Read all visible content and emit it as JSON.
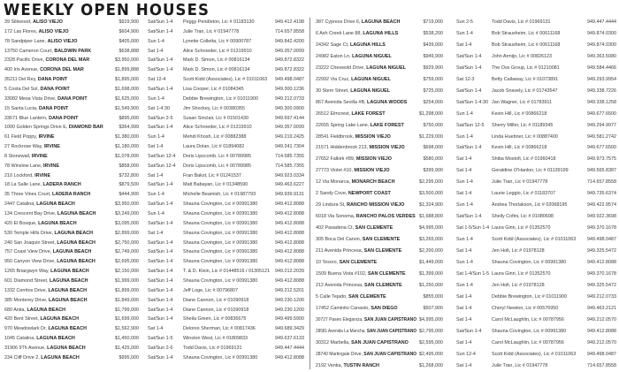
{
  "title": "WEEKLY OPEN HOUSES",
  "columns": [
    [
      [
        "39 Silkwood, ",
        "ALISO VIEJO",
        "$919,900",
        "Sat/Sun 1-4",
        "Peggy Pendleton, Lic # 01183130",
        "949.412.4198"
      ],
      [
        "172 Las Flores, ",
        "ALISO VIEJO",
        "$604,900",
        "Sat/Sun 1-4",
        "Julie Tran, Lic # 01947778",
        "714.657.8558"
      ],
      [
        "78 Sandpiper Lane, ",
        "ALISO VIEJO",
        "$405,000",
        "Sun 1-4",
        "Lynette Colletta, Lic # 00900787",
        "949.842.4200"
      ],
      [
        "13750 Cameron Court, ",
        "BALDWIN PARK",
        "$638,888",
        "Sat 1-4",
        "Alice Schroeder, Lic # 01319910",
        "949.357.0099"
      ],
      [
        "2328 Pacific Drive, ",
        "CORONA DEL MAR",
        "$3,950,000",
        "Sat/Sun 1-4",
        "Mark D. Simon, Lic # 00816134",
        "949.872.8322"
      ],
      [
        "400 Iris Avenue, ",
        "CORONA DEL MAR",
        "$1,899,888",
        "Sat/Sun 1-4",
        "Mark D. Simon, Lic # 00816134",
        "949.872.8322"
      ],
      [
        "35211 Del Rey, ",
        "DANA POINT",
        "$1,895,000",
        "Sat 12-4",
        "Scott Kidd (Associates), Lic # 01011063",
        "949.498.0487"
      ],
      [
        "5 Costa Del Sol, ",
        "DANA POINT",
        "$1,698,000",
        "Sat/Sun 1-4",
        "Lisa Cooper, Lic # 01084345",
        "949.300.1236"
      ],
      [
        "33082 Mesa Vista Drive, ",
        "DANA POINT",
        "$1,625,000",
        "Sun 1-4",
        "Debbie Brewington, Lic # 01011900",
        "949.212.0733"
      ],
      [
        "15 Santa Lucia, ",
        "DANA POINT",
        "$1,549,900",
        "Sat 1-4:30",
        "Jim Shockey, Lic # 00380355",
        "949.300.0900"
      ],
      [
        "33671 Blue Lantern, ",
        "DANA POINT",
        "$895,000",
        "Sat/Sun 2-5",
        "Susan Sinclair, Lic # 01501430",
        "949.697.4144"
      ],
      [
        "1000 Golden Springs Drive E, ",
        "DIAMOND BAR",
        "$364,999",
        "Sat/Sun 1-4",
        "Alice Schroeder, Lic # 01319910",
        "949.357.0099"
      ],
      [
        "61 Field Poppy, ",
        "IRVINE",
        "$1,380,000",
        "Sun 1-4",
        "Mehdi Khosh, Lic # 00882388",
        "949.219.2425"
      ],
      [
        "27 Rockrose Way, ",
        "IRVINE",
        "$1,180,000",
        "Sat 1-4",
        "Laura Dolan, Lic # 01894082",
        "949.241.7304"
      ],
      [
        "8 Stonewall, ",
        "IRVINE",
        "$1,078,000",
        "Sat/Sun 12-4",
        "Doris Lipscomb, Lic # 00789985",
        "714.585.7355"
      ],
      [
        "78 Winslow Lane, ",
        "IRVINE",
        "$858,000",
        "Sat/Sun 12-4",
        "Doris Lipscomb, Lic # 00789985",
        "714.585.7355"
      ],
      [
        "210 Lockford, ",
        "IRVINE",
        "$732,800",
        "Sat 1-4",
        "Fran Bakst, Lic # 01241537",
        "949.923.0334"
      ],
      [
        "18 La Salle Lane, ",
        "LADERA RANCH",
        "$879,500",
        "Sat/Sun 1-4",
        "Matt Babayan, Lic # 01348590",
        "949.463.6227"
      ],
      [
        "35 Three Vines Court, ",
        "LADERA RANCH",
        "$444,900",
        "Sun 1-4",
        "Michelle Beamish, Lic # 01987793",
        "949.939.9131"
      ],
      [
        "2447 Catalina, ",
        "LAGUNA BEACH",
        "$3,950,000",
        "Sat/Sun 1-4",
        "Shauna Covington, Lic # 00991380",
        "949.412.8088"
      ],
      [
        "134 Crescent Bay Drive, ",
        "LAGUNA BEACH",
        "$3,249,000",
        "Sun 1-4",
        "Shauna Covington, Lic # 00991380",
        "949.412.8088"
      ],
      [
        "420 El Bosque, ",
        "LAGUNA BEACH",
        "$3,095,000",
        "Sat/Sun 1-4",
        "Shauna Covington, Lic # 00991380",
        "949.412.8088"
      ],
      [
        "530 Temple Hills Drive, ",
        "LAGUNA BEACH",
        "$2,899,000",
        "Sat 1-4",
        "Shauna Covington, Lic # 00991380",
        "949.412.8088"
      ],
      [
        "240 San Joaquin Street, ",
        "LAGUNA BEACH",
        "$2,750,000",
        "Sat/Sun 1-4",
        "Shauna Covington, Lic # 00991380",
        "949.412.8088"
      ],
      [
        "757 Coast View Drive, ",
        "LAGUNA BEACH",
        "$2,749,000",
        "Sat/Sun 1-4",
        "Shauna Covington, Lic # 00991380",
        "949.412.8088"
      ],
      [
        "950 Canyon View Drive, ",
        "LAGUNA BEACH",
        "$2,695,000",
        "Sat/Sun 1-4",
        "Shauna Covington, Lic # 00991380",
        "949.412.8088"
      ],
      [
        "1265 Briargwyn Way, ",
        "LAGUNA BEACH",
        "$2,150,000",
        "Sat/Sun 1-4",
        "T. & D. Klein, Lic # 01448516 / 01305121",
        "949.212.2039"
      ],
      [
        "601 Diamond Street, ",
        "LAGUNA BEACH",
        "$1,999,000",
        "Sat/Sun 1-4",
        "Shauna Covington, Lic # 00991380",
        "949.412.8088"
      ],
      [
        "1332 Cerritos Drive, ",
        "LAGUNA BEACH",
        "$1,899,000",
        "Sat/Sun 1-4",
        "Jeff Loge, Lic # 00796807",
        "949.212.5201"
      ],
      [
        "385 Monterey Drive, ",
        "LAGUNA BEACH",
        "$1,849,000",
        "Sat/Sun 1-4",
        "Diane Cannon, Lic # 01090918",
        "949.230.1200"
      ],
      [
        "680 Anita, ",
        "LAGUNA BEACH",
        "$1,799,000",
        "Sat/Sun 1-4",
        "Diane Cannon, Lic # 01090918",
        "949.230.1200"
      ],
      [
        "420 Bent Street, ",
        "LAGUNA BEACH",
        "$1,699,000",
        "Sat/Sun 1-4",
        "Sheila Green, Lic # 00836675",
        "949.499.5900"
      ],
      [
        "970 Meadowlark Dr, ",
        "LAGUNA BEACH",
        "$1,562,900",
        "Sat 1-4",
        "Delores Sherman, Lic # 00817436",
        "949.689.3429"
      ],
      [
        "1045 Catalina, ",
        "LAGUNA BEACH",
        "$1,450,000",
        "Sat/Sun 1-5",
        "Winston West, Lic # 01809833",
        "949.637.6133"
      ],
      [
        "31906 9Th Avenue, ",
        "LAGUNA BEACH",
        "$1,425,000",
        "Sat/Sun 2-6",
        "Todd Davis, Lic # 01969131",
        "949.447.4444"
      ],
      [
        "234 Cliff Drive 2, ",
        "LAGUNA BEACH",
        "$995,000",
        "Sat/Sun 1-4",
        "Shauna Covington, Lic # 00991380",
        "949.412.8088"
      ]
    ],
    [
      [
        "387 Cypress Drive 6, ",
        "LAGUNA BEACH",
        "$719,000",
        "Sun 2-5",
        "Todd Davis, Lic # 01969131",
        "949.447.4444"
      ],
      [
        "6 Ash Creek Lane 88, ",
        "LAGUNA HILLS",
        "$538,200",
        "Sun 1-4",
        "Bob Strausheim, Lic # 00611168",
        "949.874.0300"
      ],
      [
        "24342 Sage Ct, ",
        "LAGUNA HILLS",
        "$439,000",
        "Sat 1-4",
        "Bob Strausheim, Lic # 00611168",
        "949.874.0300"
      ],
      [
        "24982 Eaton Ln, ",
        "LAGUNA NIGUEL",
        "$949,900",
        "Sat/Sun 1-4",
        "John Armijo, Lic # 00826123",
        "949.363.5080"
      ],
      [
        "23222 Cheswold Drive, ",
        "LAGUNA NIGUEL",
        "$929,900",
        "Sat/Sun 1-4",
        "The Oss Group, Lic # 01210081",
        "949.584.4466"
      ],
      [
        "22992 Via Cruz, ",
        "LAGUNA NIGUEL",
        "$759,000",
        "Sat 12-3",
        "Betty Callaway, Lic # 01073891",
        "949.293.9954"
      ],
      [
        "30 Stern Street, ",
        "LAGUNA NIGUEL",
        "$725,000",
        "Sat/Sun 1-4",
        "Jacob Snavely, Lic # 01743547",
        "949.338.7226"
      ],
      [
        "867 Avenida Sevilla #B, ",
        "LAGUNA WOODS",
        "$254,000",
        "Sat/Sun 1-4:30",
        "Jan Wagner, Lic # 01783911",
        "949.338.1258"
      ],
      [
        "26512 Elmcrest, ",
        "LAKE FOREST",
        "$1,298,000",
        "Sun 1-4",
        "Kevin Hill, Lic # 00866218",
        "949.677.6500"
      ],
      [
        "22655 Spring Lake Lane, ",
        "LAKE FOREST",
        "$750,000",
        "Sat/Sun 12-5",
        "Sherry Miller, Lic # 01189345",
        "949.294.9977"
      ],
      [
        "28541 Fieldbrook, ",
        "MISSION VIEJO",
        "$1,229,000",
        "Sun 1-4",
        "Linda Huebner, Lic # 00887400",
        "949.581.2742"
      ],
      [
        "21571 Hiddenbrook 213, ",
        "MISSION VIEJO",
        "$698,000",
        "Sat/Sun 1-4",
        "Kevin Hill, Lic # 00866218",
        "949.677.6500"
      ],
      [
        "27652 Falkirk #89, ",
        "MISSION VIEJO",
        "$580,000",
        "Sat 1-4",
        "Shiba Mostofi, Lic # 01960418",
        "949.973.7575"
      ],
      [
        "27773 Violet #10, ",
        "MISSION VIEJO",
        "$399,900",
        "Sat 1-4",
        "Geraldine O'Hanlon, Lic # 01139199",
        "949.565.8387"
      ],
      [
        "12 Via Monarca, ",
        "MONARCH BEACH",
        "$2,295,000",
        "Sun 1-4",
        "Julie Tran, Lic # 01947778",
        "714.657.8558"
      ],
      [
        "2 Sandy Cove, ",
        "NEWPORT COAST",
        "$3,500,000",
        "Sat 1-4",
        "Laurie Leggio, Lic # 01183707",
        "949.735.6374"
      ],
      [
        "29 Lindura St, ",
        "RANCHO MISSION VIEJO",
        "$1,324,900",
        "Sun 1-4",
        "Andrea Thorlakson, Lic # 02068195",
        "949.422.9574"
      ],
      [
        "6018 Via Sonoma, ",
        "RANCHO PALOS VERDES",
        "$1,688,800",
        "Sat/Sun 1-4",
        "Shelly Cofini, Lic # 01080698",
        "949.922.3698"
      ],
      [
        "402 Pasadena Ct, ",
        "SAN CLEMENTE",
        "$4,995,000",
        "Sat 1-5/Sun 1-4",
        "Laura Ginn, Lic # 01352570",
        "949.370.1678"
      ],
      [
        "305 Boca Del Canon, ",
        "SAN CLEMENTE",
        "$3,265,000",
        "Sun 1-4",
        "Scott Kidd (Associates), Lic # 01011063",
        "949.498.0487"
      ],
      [
        "211 Avenida Princesa, ",
        "SAN CLEMENTE",
        "$2,200,000",
        "Sat 1-4",
        "Jen Holt, Lic # 01978128",
        "949.325.5472"
      ],
      [
        "10 Tesoro, ",
        "SAN CLEMENTE",
        "$1,449,000",
        "Sun 1-4",
        "Shauna Covington, Lic # 00991380",
        "949.412.8088"
      ],
      [
        "1509 Buena Vista #102, ",
        "SAN CLEMENTE",
        "$1,399,000",
        "Sat 1-4/Sun 1-5",
        "Laura Ginn, Lic # 01352570",
        "949.370.1678"
      ],
      [
        "212 Avenida Princesa, ",
        "SAN CLEMENTE",
        "$1,250,000",
        "Sun 1-4",
        "Jen Holt, Lic # 01978128",
        "949.325.5472"
      ],
      [
        "5 Calle Tejado, ",
        "SAN CLEMENTE",
        "$855,000",
        "Sat 1-4",
        "Debbie Brewington, Lic # 01011900",
        "949.212.0733"
      ],
      [
        "17452 Caminito Canasto, ",
        "SAN DIEGO",
        "$507,900",
        "Sat 1-4",
        "Cheryl Newton, Lic # 00576950",
        "949.463.2121"
      ],
      [
        "30727 Paseo Elegancia, ",
        "SAN JUAN CAPISTRANO",
        "$4,995,000",
        "Sat 1-4",
        "Carol McLaughlin, Lic # 00787956",
        "949.212.0570"
      ],
      [
        "28581 Avenida La Mancha, ",
        "SAN JUAN CAPISTRANO",
        "$2,795,000",
        "Sat/Sun 1-4",
        "Shauna Covington, Lic # 00991380",
        "949.412.8088"
      ],
      [
        "30312 Marbella, ",
        "SAN JUAN CAPISTRANO",
        "$2,595,000",
        "Sat 1-4",
        "Carol McLaughlin, Lic # 00787956",
        "949.212.0570"
      ],
      [
        "28740 Martingale Drive, ",
        "SAN JUAN CAPISTRANO",
        "$2,495,000",
        "Sun 12-4",
        "Scott Kidd (Associates), Lic # 01011063",
        "949.498.0487"
      ],
      [
        "2192 Ventia, ",
        "TUSTIN RANCH",
        "$1,268,000",
        "Sat 1-4",
        "Julie Tran, Lic # 01947778",
        "714.657.8558"
      ]
    ]
  ]
}
